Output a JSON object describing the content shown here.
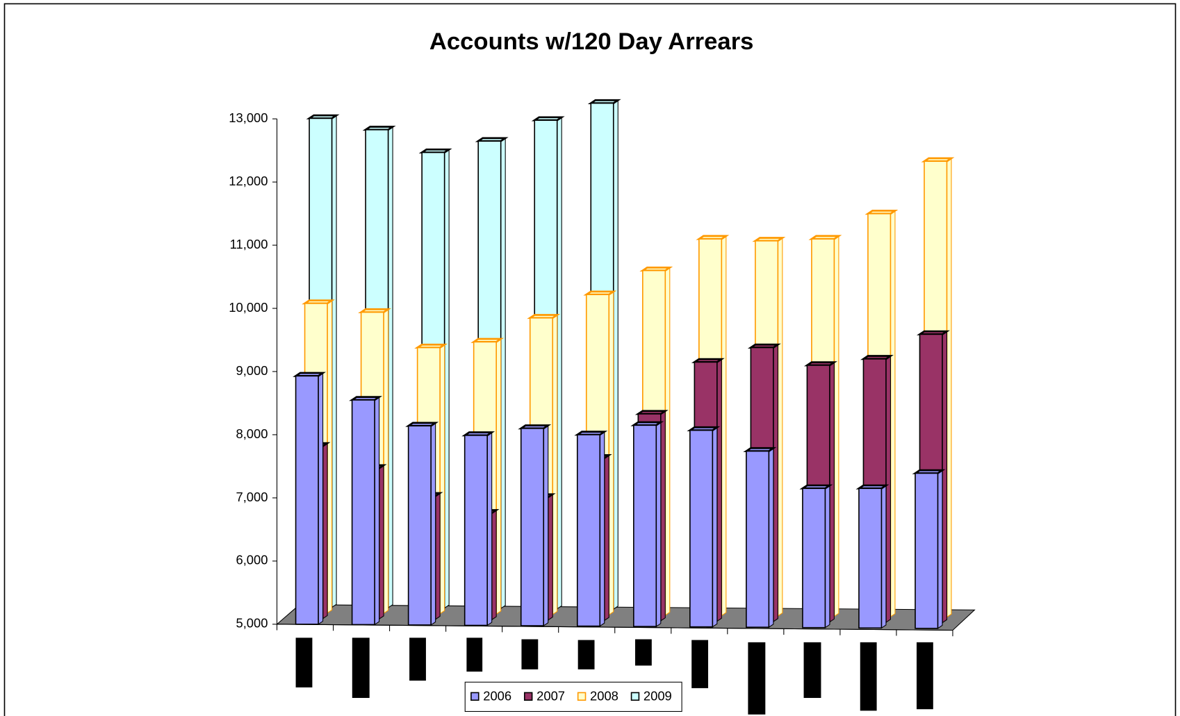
{
  "chart_data": {
    "type": "bar3d",
    "title": "Accounts w/120 Day Arrears",
    "categories": [
      null,
      null,
      null,
      null,
      null,
      null,
      null,
      null,
      null,
      null,
      null,
      null
    ],
    "series": [
      {
        "name": "2006",
        "color": "#9999ff",
        "edgecolor": "#000000",
        "values": [
          8930,
          8550,
          8140,
          7990,
          8100,
          8000,
          8150,
          8070,
          7740,
          7150,
          7150,
          7390
        ]
      },
      {
        "name": "2007",
        "color": "#993366",
        "edgecolor": "#000000",
        "values": [
          7730,
          7380,
          6940,
          6670,
          6920,
          7540,
          8240,
          9060,
          9290,
          9010,
          9110,
          9500
        ]
      },
      {
        "name": "2008",
        "color": "#ffffcc",
        "edgecolor": "#ff9900",
        "values": [
          9900,
          9760,
          9200,
          9290,
          9670,
          10040,
          10420,
          10920,
          10890,
          10920,
          11320,
          12150
        ]
      },
      {
        "name": "2009",
        "color": "#ccffff",
        "edgecolor": "#000000",
        "values": [
          12740,
          12560,
          12200,
          12380,
          12710,
          12980,
          null,
          null,
          null,
          null,
          null,
          null
        ]
      }
    ],
    "ylim": [
      5000,
      13000
    ],
    "yticks": [
      {
        "value": 5000,
        "label": "5,000"
      },
      {
        "value": 6000,
        "label": "6,000"
      },
      {
        "value": 7000,
        "label": "7,000"
      },
      {
        "value": 8000,
        "label": "8,000"
      },
      {
        "value": 9000,
        "label": "9,000"
      },
      {
        "value": 10000,
        "label": "10,000"
      },
      {
        "value": 11000,
        "label": "11,000"
      },
      {
        "value": 12000,
        "label": "12,000"
      },
      {
        "value": 13000,
        "label": "13,000"
      }
    ],
    "legend": "bottom"
  }
}
